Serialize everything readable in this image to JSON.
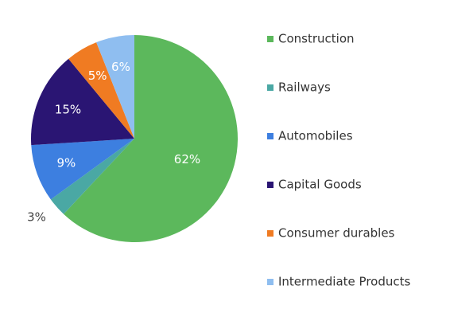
{
  "chart_data": {
    "type": "pie",
    "start": "12 o'clock",
    "direction": "clockwise",
    "legend_position": "right",
    "slices": [
      {
        "name": "Construction",
        "value": 62,
        "label": "62%",
        "color": "#5cb85c",
        "label_color": "#ffffff"
      },
      {
        "name": "Railways",
        "value": 3,
        "label": "3%",
        "color": "#4aa8a4",
        "label_color": "#444444"
      },
      {
        "name": "Automobiles",
        "value": 9,
        "label": "9%",
        "color": "#3d7fe0",
        "label_color": "#ffffff"
      },
      {
        "name": "Capital Goods",
        "value": 15,
        "label": "15%",
        "color": "#2a1573",
        "label_color": "#ffffff"
      },
      {
        "name": "Consumer durables",
        "value": 5,
        "label": "5%",
        "color": "#f07b22",
        "label_color": "#ffffff"
      },
      {
        "name": "Intermediate Products",
        "value": 6,
        "label": "6%",
        "color": "#8fbef0",
        "label_color": "#ffffff"
      }
    ]
  }
}
